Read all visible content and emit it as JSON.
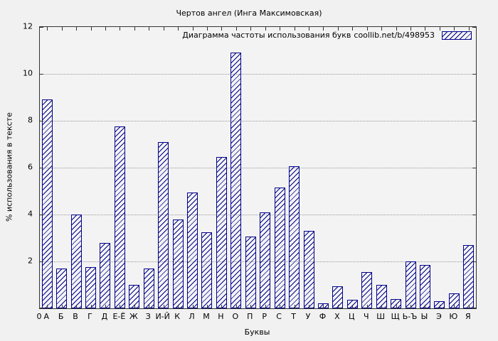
{
  "title": "Чертов ангел (Инга Максимовская)",
  "legend": {
    "label": "Диаграмма частоты использования букв",
    "link": "coollib.net/b/498953",
    "swatch_icon": "hatched-bar-sample"
  },
  "axes": {
    "ylabel": "% использования в тексте",
    "xlabel": "Буквы",
    "origin_label": "0"
  },
  "colors": {
    "bar_outline": "#00008b",
    "grid": "#999999",
    "background": "#f1f1f1",
    "axis": "#333333"
  },
  "chart_data": {
    "type": "bar",
    "title": "Чертов ангел (Инга Максимовская)",
    "xlabel": "Буквы",
    "ylabel": "% использования в тексте",
    "ylim": [
      0,
      12
    ],
    "yticks": [
      0,
      2,
      4,
      6,
      8,
      10,
      12
    ],
    "grid": "horizontal-dotted",
    "legend_position": "top-right-inside",
    "legend_entry": "Диаграмма частоты использования букв  coollib.net/b/498953",
    "categories": [
      "А",
      "Б",
      "В",
      "Г",
      "Д",
      "Е-Ё",
      "Ж",
      "З",
      "И-Й",
      "К",
      "Л",
      "М",
      "Н",
      "О",
      "П",
      "Р",
      "С",
      "Т",
      "У",
      "Ф",
      "Х",
      "Ц",
      "Ч",
      "Ш",
      "Щ",
      "Ь-Ъ",
      "Ы",
      "Э",
      "Ю",
      "Я"
    ],
    "values": [
      8.9,
      1.7,
      4.0,
      1.75,
      2.8,
      7.75,
      1.0,
      1.7,
      7.1,
      3.8,
      4.95,
      3.25,
      6.45,
      10.9,
      3.05,
      4.1,
      5.15,
      6.05,
      3.3,
      0.2,
      0.95,
      0.35,
      1.55,
      1.0,
      0.4,
      2.0,
      1.85,
      0.3,
      0.65,
      2.7
    ]
  }
}
